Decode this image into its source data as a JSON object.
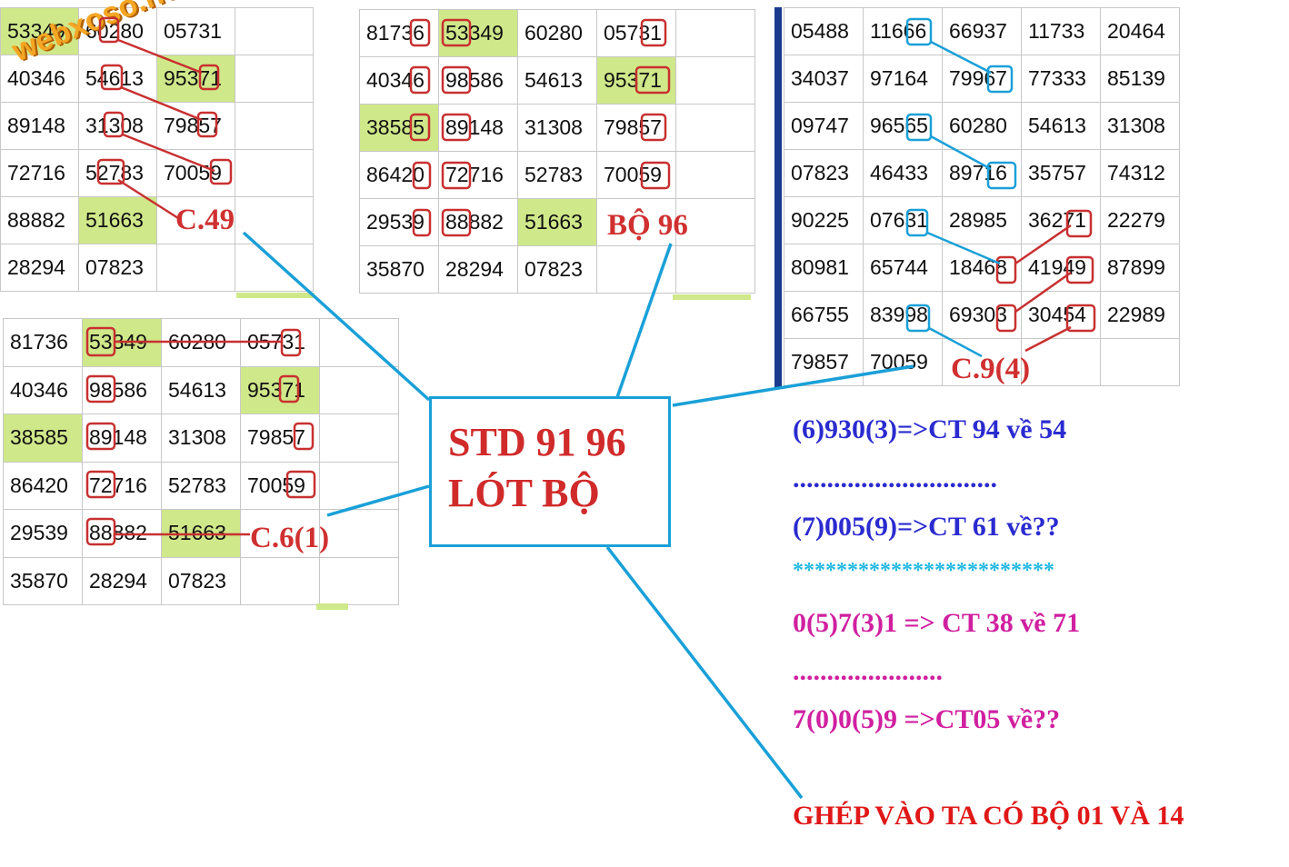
{
  "watermark": "webxoso.net",
  "grid_top_left": {
    "rows": [
      [
        "53349",
        "60280",
        "05731",
        ""
      ],
      [
        "40346",
        "54613",
        "95371",
        ""
      ],
      [
        "89148",
        "31308",
        "79857",
        ""
      ],
      [
        "72716",
        "52783",
        "70059",
        ""
      ],
      [
        "88882",
        "51663",
        "",
        ""
      ],
      [
        "28294",
        "07823",
        "",
        ""
      ]
    ]
  },
  "grid_top_middle": {
    "rows": [
      [
        "81736",
        "53349",
        "60280",
        "05731",
        ""
      ],
      [
        "40346",
        "98586",
        "54613",
        "95371",
        ""
      ],
      [
        "38585",
        "89148",
        "31308",
        "79857",
        ""
      ],
      [
        "86420",
        "72716",
        "52783",
        "70059",
        ""
      ],
      [
        "29539",
        "88882",
        "51663",
        "",
        ""
      ],
      [
        "35870",
        "28294",
        "07823",
        "",
        ""
      ]
    ]
  },
  "grid_bottom_left": {
    "rows": [
      [
        "81736",
        "53349",
        "60280",
        "05731",
        ""
      ],
      [
        "40346",
        "98586",
        "54613",
        "95371",
        ""
      ],
      [
        "38585",
        "89148",
        "31308",
        "79857",
        ""
      ],
      [
        "86420",
        "72716",
        "52783",
        "70059",
        ""
      ],
      [
        "29539",
        "88882",
        "51663",
        "",
        ""
      ],
      [
        "35870",
        "28294",
        "07823",
        "",
        ""
      ]
    ]
  },
  "grid_right": {
    "rows": [
      [
        "05488",
        "11666",
        "66937",
        "11733",
        "20464"
      ],
      [
        "34037",
        "97164",
        "79967",
        "77333",
        "85139"
      ],
      [
        "09747",
        "96565",
        "60280",
        "54613",
        "31308"
      ],
      [
        "07823",
        "46433",
        "89716",
        "35757",
        "74312"
      ],
      [
        "90225",
        "07631",
        "28985",
        "36271",
        "22279"
      ],
      [
        "80981",
        "65744",
        "18468",
        "41949",
        "87899"
      ],
      [
        "66755",
        "83998",
        "69303",
        "30454",
        "22989"
      ],
      [
        "79857",
        "70059",
        "",
        "",
        ""
      ]
    ]
  },
  "labels": {
    "c49": "C.49",
    "bo96": "BỘ 96",
    "c61": "C.6(1)",
    "c94": "C.9(4)"
  },
  "center_box": {
    "line1": "STD 91 96",
    "line2": "LÓT BỘ"
  },
  "notes": {
    "n1": "(6)930(3)=>CT 94 về 54",
    "sep1": "..............................",
    "n2": "(7)005(9)=>CT 61 về??",
    "sep2": "************************",
    "n3": "0(5)7(3)1 => CT 38 về 71",
    "sep3": "......................",
    "n4": "7(0)0(5)9 =>CT05 về??",
    "final": "GHÉP VÀO TA CÓ BỘ 01 VÀ 14"
  },
  "colors": {
    "highlight": "#cfe88a",
    "mark_red": "#c83030",
    "mark_blue": "#1aa0d8",
    "note_blue": "#2b2bd0",
    "note_magenta": "#d020a0",
    "note_cyan": "#20b8e0",
    "final_red": "#e01818"
  }
}
